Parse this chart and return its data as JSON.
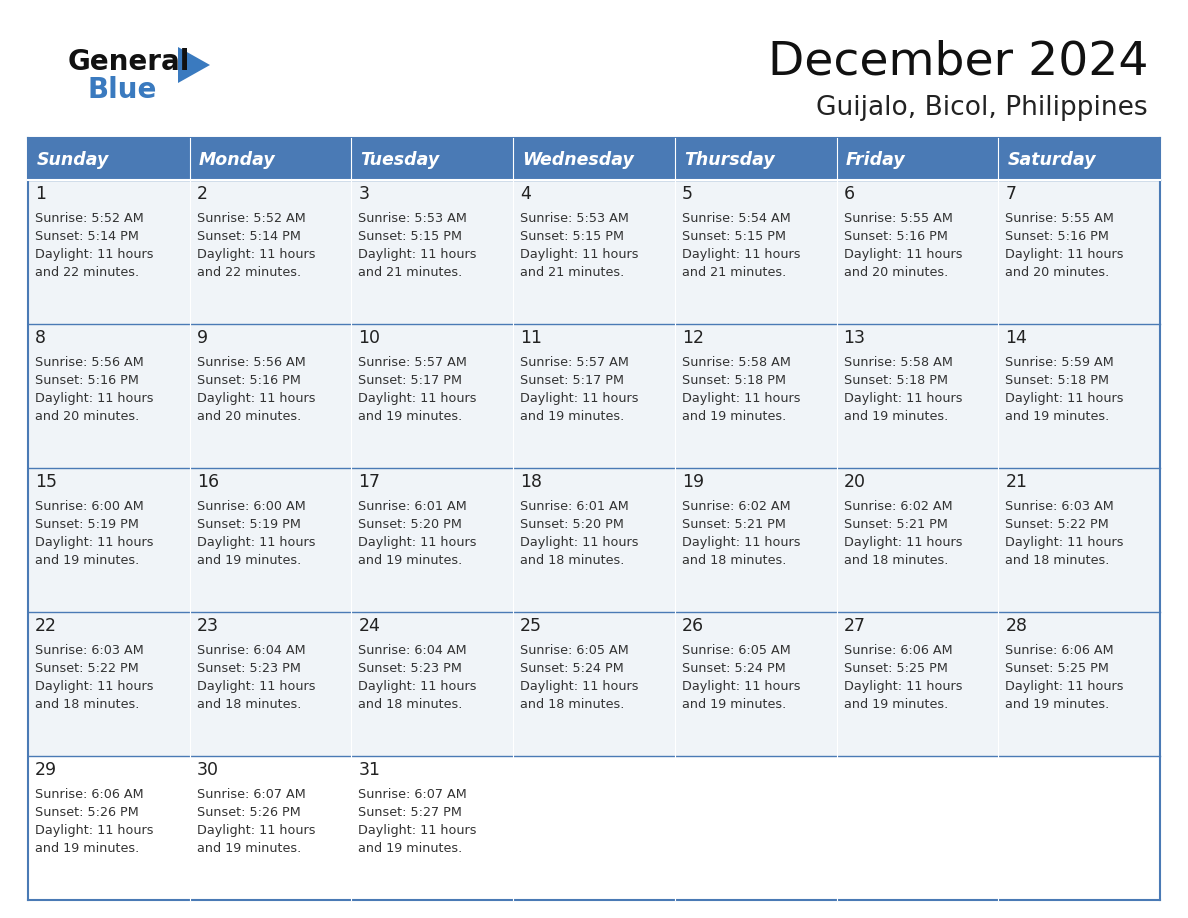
{
  "title": "December 2024",
  "subtitle": "Guijalo, Bicol, Philippines",
  "days_of_week": [
    "Sunday",
    "Monday",
    "Tuesday",
    "Wednesday",
    "Thursday",
    "Friday",
    "Saturday"
  ],
  "header_bg": "#4a7ab5",
  "header_text": "#FFFFFF",
  "cell_bg": "#f0f4f8",
  "cell_bg_last": "#ffffff",
  "cell_border_color": "#4a7ab5",
  "day_number_color": "#222222",
  "cell_text_color": "#333333",
  "title_color": "#111111",
  "subtitle_color": "#222222",
  "logo_black": "#111111",
  "logo_blue": "#3a7abf",
  "triangle_color": "#3a7abf",
  "calendar_data": [
    [
      {
        "day": 1,
        "sunrise": "5:52 AM",
        "sunset": "5:14 PM",
        "daylight_line1": "Daylight: 11 hours",
        "daylight_line2": "and 22 minutes."
      },
      {
        "day": 2,
        "sunrise": "5:52 AM",
        "sunset": "5:14 PM",
        "daylight_line1": "Daylight: 11 hours",
        "daylight_line2": "and 22 minutes."
      },
      {
        "day": 3,
        "sunrise": "5:53 AM",
        "sunset": "5:15 PM",
        "daylight_line1": "Daylight: 11 hours",
        "daylight_line2": "and 21 minutes."
      },
      {
        "day": 4,
        "sunrise": "5:53 AM",
        "sunset": "5:15 PM",
        "daylight_line1": "Daylight: 11 hours",
        "daylight_line2": "and 21 minutes."
      },
      {
        "day": 5,
        "sunrise": "5:54 AM",
        "sunset": "5:15 PM",
        "daylight_line1": "Daylight: 11 hours",
        "daylight_line2": "and 21 minutes."
      },
      {
        "day": 6,
        "sunrise": "5:55 AM",
        "sunset": "5:16 PM",
        "daylight_line1": "Daylight: 11 hours",
        "daylight_line2": "and 20 minutes."
      },
      {
        "day": 7,
        "sunrise": "5:55 AM",
        "sunset": "5:16 PM",
        "daylight_line1": "Daylight: 11 hours",
        "daylight_line2": "and 20 minutes."
      }
    ],
    [
      {
        "day": 8,
        "sunrise": "5:56 AM",
        "sunset": "5:16 PM",
        "daylight_line1": "Daylight: 11 hours",
        "daylight_line2": "and 20 minutes."
      },
      {
        "day": 9,
        "sunrise": "5:56 AM",
        "sunset": "5:16 PM",
        "daylight_line1": "Daylight: 11 hours",
        "daylight_line2": "and 20 minutes."
      },
      {
        "day": 10,
        "sunrise": "5:57 AM",
        "sunset": "5:17 PM",
        "daylight_line1": "Daylight: 11 hours",
        "daylight_line2": "and 19 minutes."
      },
      {
        "day": 11,
        "sunrise": "5:57 AM",
        "sunset": "5:17 PM",
        "daylight_line1": "Daylight: 11 hours",
        "daylight_line2": "and 19 minutes."
      },
      {
        "day": 12,
        "sunrise": "5:58 AM",
        "sunset": "5:18 PM",
        "daylight_line1": "Daylight: 11 hours",
        "daylight_line2": "and 19 minutes."
      },
      {
        "day": 13,
        "sunrise": "5:58 AM",
        "sunset": "5:18 PM",
        "daylight_line1": "Daylight: 11 hours",
        "daylight_line2": "and 19 minutes."
      },
      {
        "day": 14,
        "sunrise": "5:59 AM",
        "sunset": "5:18 PM",
        "daylight_line1": "Daylight: 11 hours",
        "daylight_line2": "and 19 minutes."
      }
    ],
    [
      {
        "day": 15,
        "sunrise": "6:00 AM",
        "sunset": "5:19 PM",
        "daylight_line1": "Daylight: 11 hours",
        "daylight_line2": "and 19 minutes."
      },
      {
        "day": 16,
        "sunrise": "6:00 AM",
        "sunset": "5:19 PM",
        "daylight_line1": "Daylight: 11 hours",
        "daylight_line2": "and 19 minutes."
      },
      {
        "day": 17,
        "sunrise": "6:01 AM",
        "sunset": "5:20 PM",
        "daylight_line1": "Daylight: 11 hours",
        "daylight_line2": "and 19 minutes."
      },
      {
        "day": 18,
        "sunrise": "6:01 AM",
        "sunset": "5:20 PM",
        "daylight_line1": "Daylight: 11 hours",
        "daylight_line2": "and 18 minutes."
      },
      {
        "day": 19,
        "sunrise": "6:02 AM",
        "sunset": "5:21 PM",
        "daylight_line1": "Daylight: 11 hours",
        "daylight_line2": "and 18 minutes."
      },
      {
        "day": 20,
        "sunrise": "6:02 AM",
        "sunset": "5:21 PM",
        "daylight_line1": "Daylight: 11 hours",
        "daylight_line2": "and 18 minutes."
      },
      {
        "day": 21,
        "sunrise": "6:03 AM",
        "sunset": "5:22 PM",
        "daylight_line1": "Daylight: 11 hours",
        "daylight_line2": "and 18 minutes."
      }
    ],
    [
      {
        "day": 22,
        "sunrise": "6:03 AM",
        "sunset": "5:22 PM",
        "daylight_line1": "Daylight: 11 hours",
        "daylight_line2": "and 18 minutes."
      },
      {
        "day": 23,
        "sunrise": "6:04 AM",
        "sunset": "5:23 PM",
        "daylight_line1": "Daylight: 11 hours",
        "daylight_line2": "and 18 minutes."
      },
      {
        "day": 24,
        "sunrise": "6:04 AM",
        "sunset": "5:23 PM",
        "daylight_line1": "Daylight: 11 hours",
        "daylight_line2": "and 18 minutes."
      },
      {
        "day": 25,
        "sunrise": "6:05 AM",
        "sunset": "5:24 PM",
        "daylight_line1": "Daylight: 11 hours",
        "daylight_line2": "and 18 minutes."
      },
      {
        "day": 26,
        "sunrise": "6:05 AM",
        "sunset": "5:24 PM",
        "daylight_line1": "Daylight: 11 hours",
        "daylight_line2": "and 19 minutes."
      },
      {
        "day": 27,
        "sunrise": "6:06 AM",
        "sunset": "5:25 PM",
        "daylight_line1": "Daylight: 11 hours",
        "daylight_line2": "and 19 minutes."
      },
      {
        "day": 28,
        "sunrise": "6:06 AM",
        "sunset": "5:25 PM",
        "daylight_line1": "Daylight: 11 hours",
        "daylight_line2": "and 19 minutes."
      }
    ],
    [
      {
        "day": 29,
        "sunrise": "6:06 AM",
        "sunset": "5:26 PM",
        "daylight_line1": "Daylight: 11 hours",
        "daylight_line2": "and 19 minutes."
      },
      {
        "day": 30,
        "sunrise": "6:07 AM",
        "sunset": "5:26 PM",
        "daylight_line1": "Daylight: 11 hours",
        "daylight_line2": "and 19 minutes."
      },
      {
        "day": 31,
        "sunrise": "6:07 AM",
        "sunset": "5:27 PM",
        "daylight_line1": "Daylight: 11 hours",
        "daylight_line2": "and 19 minutes."
      },
      null,
      null,
      null,
      null
    ]
  ]
}
